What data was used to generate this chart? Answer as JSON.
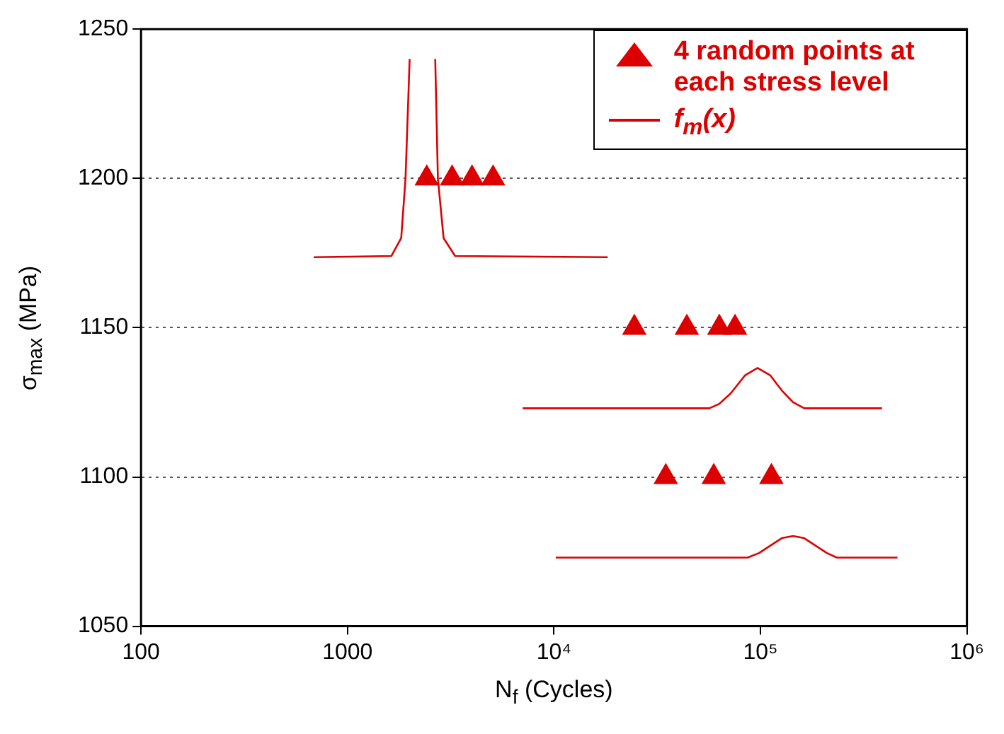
{
  "chart_data": {
    "type": "scatter",
    "xlabel": "N$_{f}$ (Cycles)",
    "ylabel": "σ$_{max}$ (MPa)",
    "log": "x",
    "xlim": [
      100,
      1000000
    ],
    "xticks": [
      100,
      1000,
      {
        "value": 10000,
        "label": "10⁴"
      },
      {
        "value": 100000,
        "label": "10⁵"
      },
      {
        "value": 1000000,
        "label": "10⁶"
      }
    ],
    "ylim": [
      1050,
      1250
    ],
    "yticks": [
      1050,
      1100,
      1150,
      1200,
      1250
    ],
    "grid": "y",
    "legend": "top right",
    "series": [
      {
        "name": "4 random points at each stress level",
        "marker": "triangle",
        "color": "#dd0000",
        "x": [
          2420,
          3210,
          4010,
          5070,
          24500,
          44000,
          63200,
          75300,
          34800,
          59400,
          113000
        ],
        "values": [
          1200,
          1200,
          1200,
          1200,
          1150,
          1150,
          1150,
          1150,
          1100,
          1100,
          1100
        ]
      },
      {
        "name": "f$_{m}$(x)",
        "type": "line",
        "line_style": "solid",
        "marker": "none",
        "color": "#dd0000",
        "x": [
          686,
          1630,
          1820,
          1910,
          2000
        ],
        "values": [
          1173.6,
          1174,
          1180,
          1200,
          1240
        ]
      },
      {
        "type": "line",
        "line_style": "solid",
        "marker": "none",
        "color": "#dd0000",
        "x": [
          2660,
          2740,
          2920,
          3320,
          18200
        ],
        "values": [
          1240,
          1200,
          1180,
          1174,
          1173.6
        ]
      },
      {
        "type": "line",
        "line_style": "solid",
        "marker": "none",
        "color": "#dd0000",
        "x": [
          7060,
          56600,
          63200,
          71800,
          84100,
          96800,
          111700,
          126800,
          143900,
          163000,
          388000
        ],
        "values": [
          1123,
          1123,
          1124.5,
          1128,
          1134,
          1136.5,
          1134,
          1129,
          1125,
          1123,
          1123
        ]
      },
      {
        "type": "line",
        "line_style": "solid",
        "marker": "none",
        "color": "#dd0000",
        "x": [
          10200,
          86700,
          98400,
          111700,
          126800,
          143900,
          163000,
          184900,
          209900,
          234400,
          461000
        ],
        "values": [
          1073,
          1073,
          1074.5,
          1077,
          1079.5,
          1080.2,
          1079.5,
          1077,
          1074.5,
          1073,
          1073
        ]
      }
    ]
  }
}
